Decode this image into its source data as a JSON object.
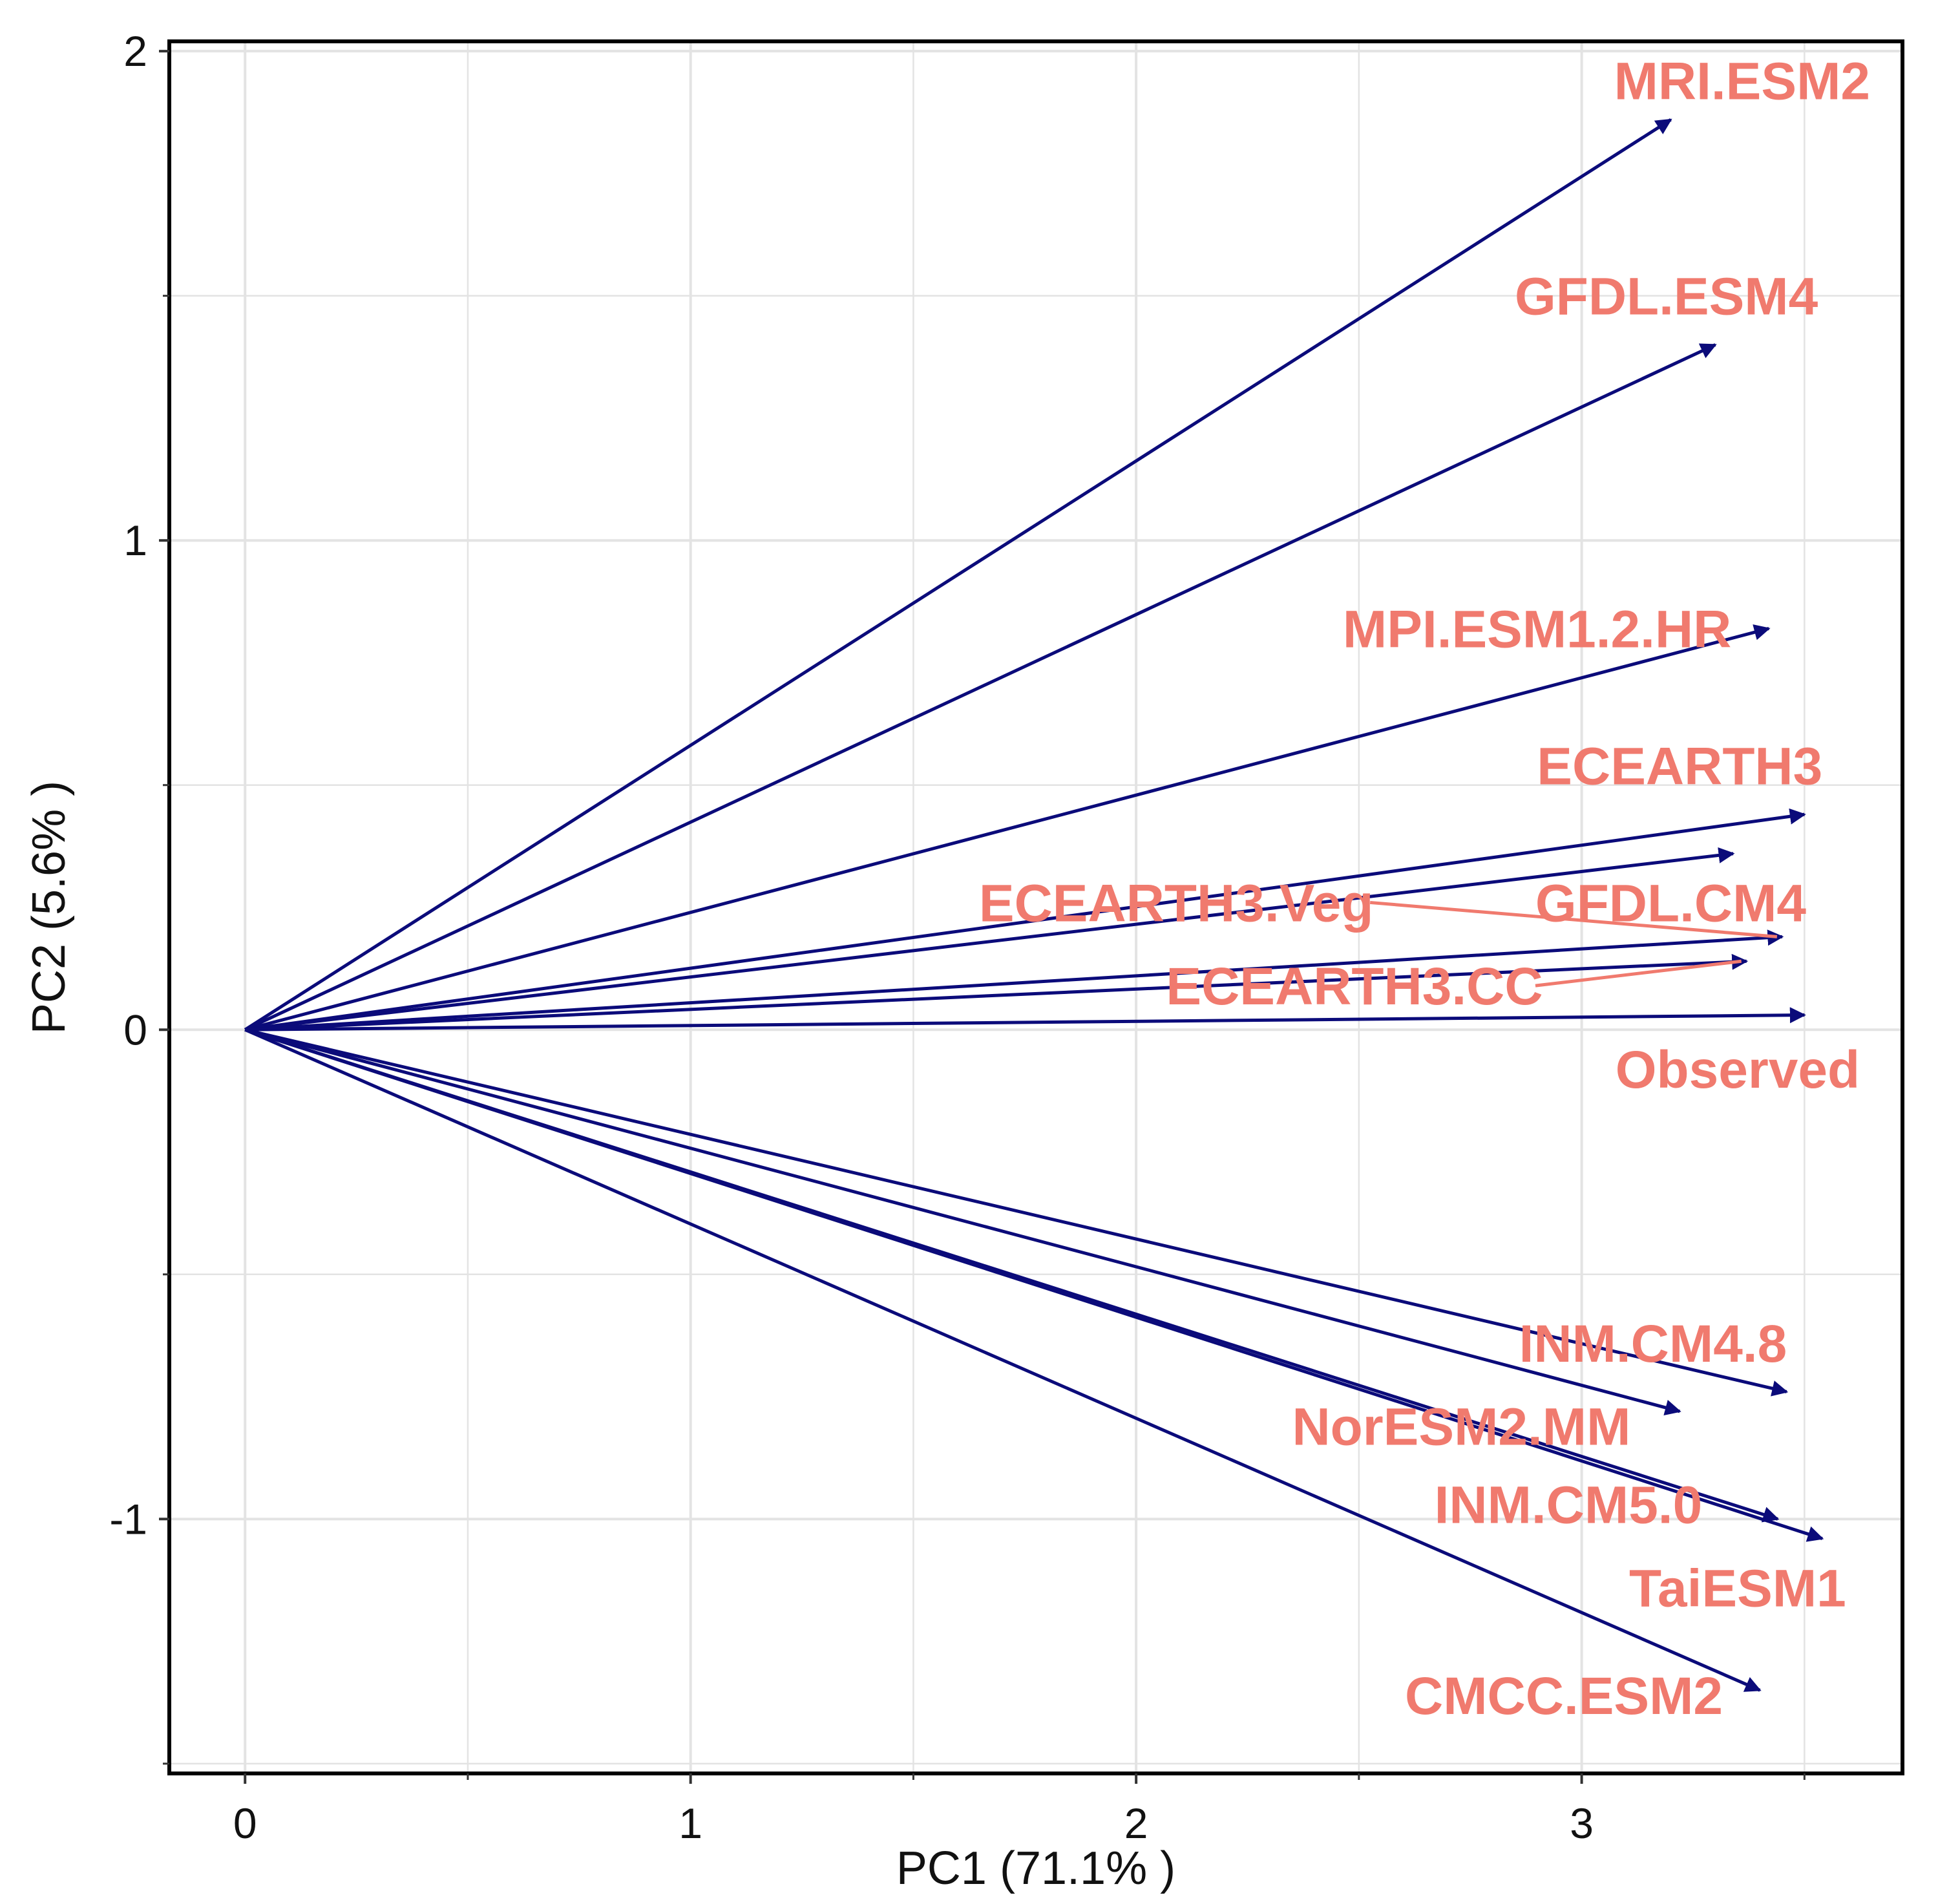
{
  "chart_data": {
    "type": "biplot",
    "xlabel": "PC1 (71.1% )",
    "ylabel": "PC2 (5.6% )",
    "xlim": [
      -0.17,
      3.72
    ],
    "ylim": [
      -1.52,
      2.02
    ],
    "x_ticks": [
      0,
      1,
      2,
      3
    ],
    "y_ticks": [
      -1,
      0,
      1,
      2
    ],
    "x_tick_labels": [
      "0",
      "1",
      "2",
      "3"
    ],
    "y_tick_labels": [
      "-1",
      "0",
      "1",
      "2"
    ],
    "grid": true,
    "colors": {
      "arrow": "#0b0b7a",
      "label": "#f07a6e",
      "grid": "#e3e3e3",
      "frame": "#000000"
    },
    "vectors": [
      {
        "name": "MRI.ESM2",
        "x": 3.2,
        "y": 1.86
      },
      {
        "name": "GFDL.ESM4",
        "x": 3.3,
        "y": 1.4
      },
      {
        "name": "MPI.ESM1.2.HR",
        "x": 3.42,
        "y": 0.82
      },
      {
        "name": "ECEARTH3",
        "x": 3.5,
        "y": 0.44
      },
      {
        "name": "ECEARTH3.Veg",
        "x": 3.34,
        "y": 0.36
      },
      {
        "name": "GFDL.CM4",
        "x": 3.45,
        "y": 0.19
      },
      {
        "name": "ECEARTH3.CC",
        "x": 3.37,
        "y": 0.14
      },
      {
        "name": "Observed",
        "x": 3.5,
        "y": 0.03
      },
      {
        "name": "INM.CM4.8",
        "x": 3.46,
        "y": -0.74
      },
      {
        "name": "NorESM2.MM",
        "x": 3.22,
        "y": -0.78
      },
      {
        "name": "INM.CM5.0",
        "x": 3.44,
        "y": -1.0
      },
      {
        "name": "TaiESM1",
        "x": 3.54,
        "y": -1.04
      },
      {
        "name": "CMCC.ESM2",
        "x": 3.4,
        "y": -1.35
      }
    ],
    "labels": [
      {
        "text": "MRI.ESM2",
        "x": 3.36,
        "y": 1.94,
        "leader_to": null
      },
      {
        "text": "GFDL.ESM4",
        "x": 3.19,
        "y": 1.5,
        "leader_to": null
      },
      {
        "text": "MPI.ESM1.2.HR",
        "x": 2.9,
        "y": 0.82,
        "leader_to": null
      },
      {
        "text": "ECEARTH3",
        "x": 3.22,
        "y": 0.54,
        "leader_to": null
      },
      {
        "text": "ECEARTH3.Veg",
        "x": 2.09,
        "y": 0.26,
        "leader_to": "GFDL.CM4"
      },
      {
        "text": "GFDL.CM4",
        "x": 3.2,
        "y": 0.26,
        "leader_to": null
      },
      {
        "text": "ECEARTH3.CC",
        "x": 2.49,
        "y": 0.09,
        "leader_to": "ECEARTH3.CC"
      },
      {
        "text": "Observed",
        "x": 3.35,
        "y": -0.08,
        "leader_to": null
      },
      {
        "text": "INM.CM4.8",
        "x": 3.16,
        "y": -0.64,
        "leader_to": null
      },
      {
        "text": "NorESM2.MM",
        "x": 2.73,
        "y": -0.81,
        "leader_to": null
      },
      {
        "text": "INM.CM5.0",
        "x": 2.97,
        "y": -0.97,
        "leader_to": null
      },
      {
        "text": "TaiESM1",
        "x": 3.35,
        "y": -1.14,
        "leader_to": null
      },
      {
        "text": "CMCC.ESM2",
        "x": 2.96,
        "y": -1.36,
        "leader_to": null
      }
    ]
  }
}
